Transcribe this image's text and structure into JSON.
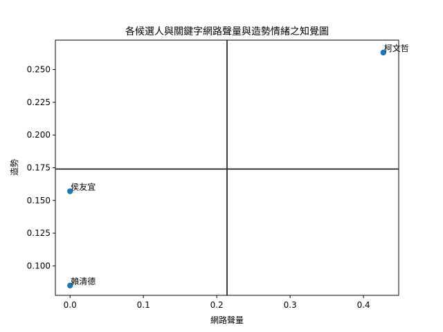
{
  "chart_data": {
    "type": "scatter",
    "title": "各候選人與關鍵字網路聲量與造勢情緒之知覺圖",
    "xlabel": "網路聲量",
    "ylabel": "造勢",
    "xlim": [
      -0.02,
      0.448
    ],
    "ylim": [
      0.0775,
      0.2725
    ],
    "xticks": [
      0.0,
      0.1,
      0.2,
      0.3,
      0.4
    ],
    "xtick_labels": [
      "0.0",
      "0.1",
      "0.2",
      "0.3",
      "0.4"
    ],
    "yticks": [
      0.1,
      0.125,
      0.15,
      0.175,
      0.2,
      0.225,
      0.25
    ],
    "ytick_labels": [
      "0.100",
      "0.125",
      "0.150",
      "0.175",
      "0.200",
      "0.225",
      "0.250"
    ],
    "points": [
      {
        "label": "柯文哲",
        "x": 0.427,
        "y": 0.263
      },
      {
        "label": "侯友宜",
        "x": 0.0,
        "y": 0.157
      },
      {
        "label": "賴清德",
        "x": 0.0,
        "y": 0.085
      }
    ],
    "reference_lines": {
      "vertical_x": 0.214,
      "horizontal_y": 0.174
    },
    "grid": false,
    "colors": {
      "marker": "#1f77b4",
      "reference_line": "#000000"
    }
  }
}
